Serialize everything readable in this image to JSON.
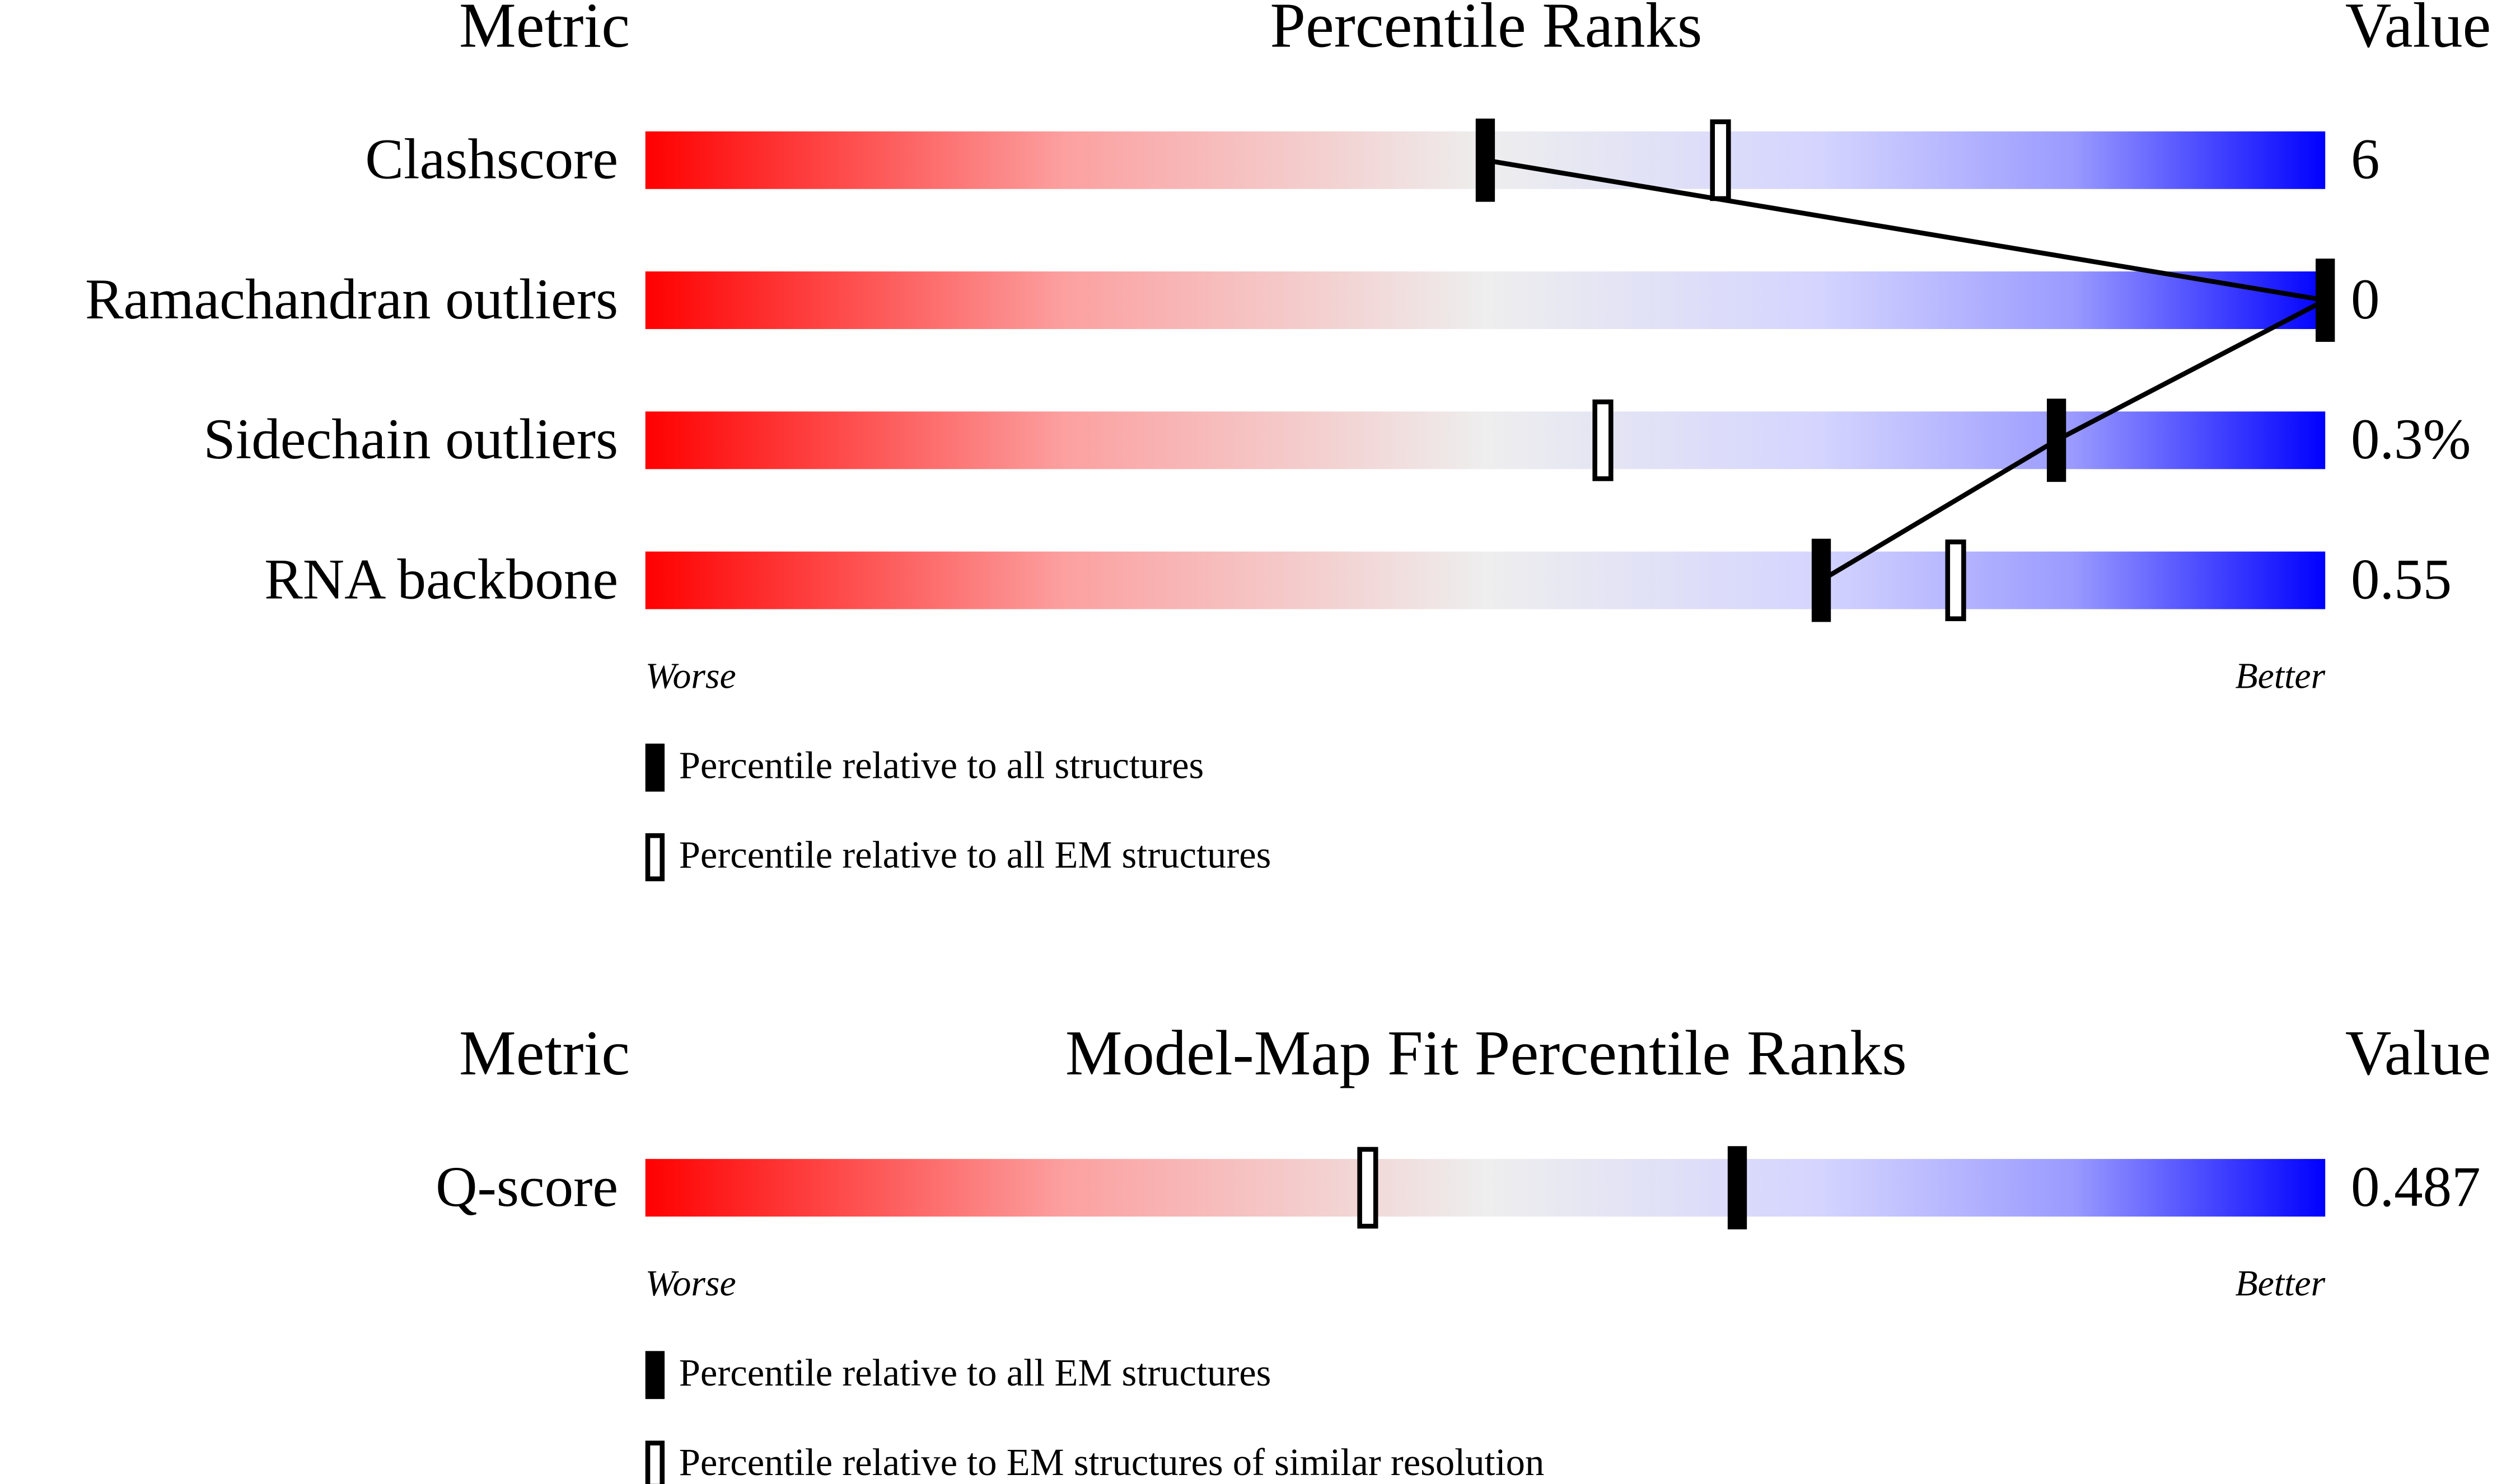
{
  "chart_data": [
    {
      "type": "slider",
      "metric_header": "Metric",
      "title": "Percentile Ranks",
      "value_header": "Value",
      "categories": [
        "Clashscore",
        "Ramachandran outliers",
        "Sidechain outliers",
        "RNA backbone"
      ],
      "value_labels": [
        "6",
        "0",
        "0.3%",
        "0.55"
      ],
      "xlim": [
        0,
        100
      ],
      "worse_label": "Worse",
      "better_label": "Better",
      "series": [
        {
          "name": "Percentile relative to all structures",
          "style": "filled",
          "color": "#000000",
          "values": [
            50,
            100,
            84,
            70
          ]
        },
        {
          "name": "Percentile relative to all EM structures",
          "style": "hollow",
          "color": "#000000",
          "values": [
            64,
            null,
            57,
            78
          ]
        }
      ]
    },
    {
      "type": "slider",
      "metric_header": "Metric",
      "title": "Model-Map Fit Percentile Ranks",
      "value_header": "Value",
      "categories": [
        "Q-score"
      ],
      "value_labels": [
        "0.487"
      ],
      "xlim": [
        0,
        100
      ],
      "worse_label": "Worse",
      "better_label": "Better",
      "series": [
        {
          "name": "Percentile relative to all EM structures",
          "style": "filled",
          "color": "#000000",
          "values": [
            65
          ]
        },
        {
          "name": "Percentile relative to EM structures of similar resolution",
          "style": "hollow",
          "color": "#000000",
          "values": [
            43
          ]
        }
      ]
    }
  ]
}
